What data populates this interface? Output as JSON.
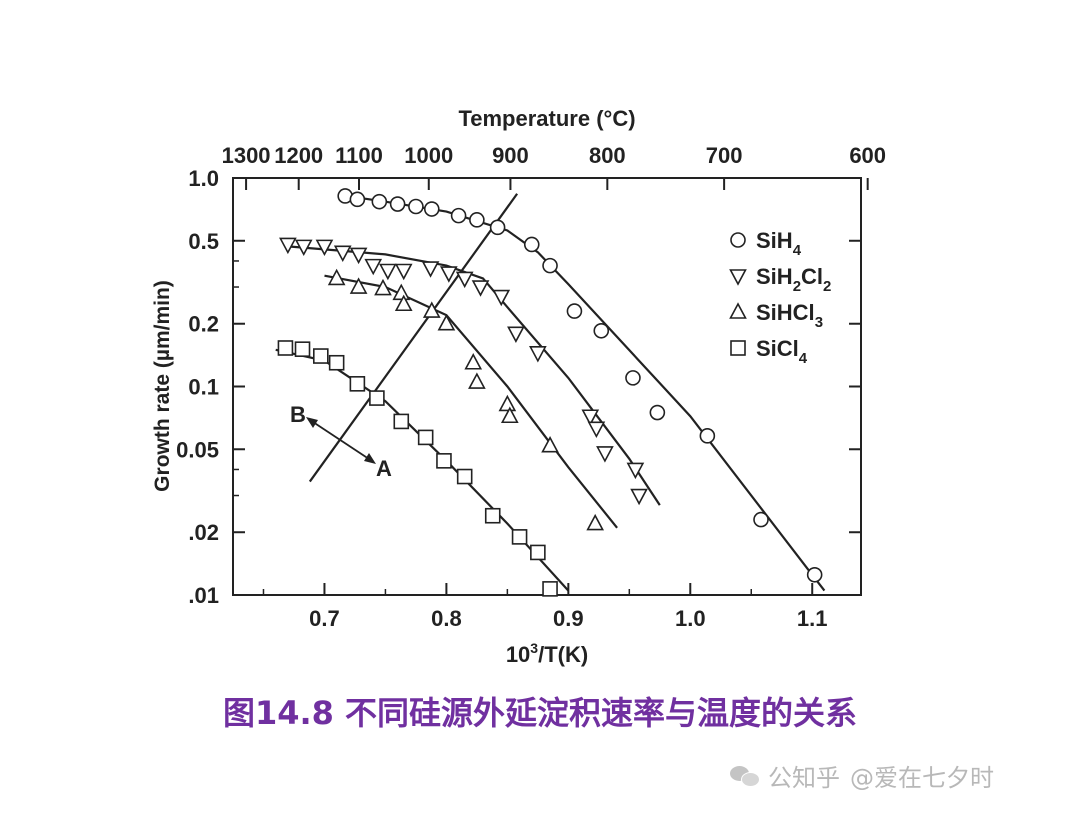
{
  "chart_data": {
    "type": "scatter",
    "x_scale": "linear",
    "y_scale": "log",
    "xlabel_main": "10",
    "xlabel_sup": "3",
    "xlabel_rest": "/T(K)",
    "ylabel": "Growth rate (µm/min)",
    "top_axis_label": "Temperature (°C)",
    "xlim": [
      0.625,
      1.14
    ],
    "ylim": [
      0.01,
      1.0
    ],
    "x_ticks": [
      0.7,
      0.8,
      0.9,
      1.0,
      1.1
    ],
    "x_tick_labels": [
      "0.7",
      "0.8",
      "0.9",
      "1.0",
      "1.1"
    ],
    "y_ticks": [
      1.0,
      0.5,
      0.2,
      0.1,
      0.05,
      0.02,
      0.01
    ],
    "y_tick_labels": [
      "1.0",
      "0.5",
      "0.2",
      "0.1",
      "0.05",
      ".02",
      ".01"
    ],
    "top_ticks_celsius": [
      1300,
      1200,
      1100,
      1000,
      900,
      800,
      700,
      600
    ],
    "top_tick_labels": [
      "1300",
      "1200",
      "1100",
      "1000",
      "900",
      "800",
      "700",
      "600"
    ],
    "legend_position": "top-right",
    "series": [
      {
        "name_base": "SiH",
        "name_sub": "4",
        "name_rest": "",
        "name_sub2": "",
        "marker": "circle",
        "points": [
          [
            0.717,
            0.82
          ],
          [
            0.727,
            0.79
          ],
          [
            0.745,
            0.77
          ],
          [
            0.76,
            0.75
          ],
          [
            0.775,
            0.73
          ],
          [
            0.788,
            0.71
          ],
          [
            0.81,
            0.66
          ],
          [
            0.825,
            0.63
          ],
          [
            0.842,
            0.58
          ],
          [
            0.87,
            0.48
          ],
          [
            0.885,
            0.38
          ],
          [
            0.905,
            0.23
          ],
          [
            0.927,
            0.185
          ],
          [
            0.953,
            0.11
          ],
          [
            0.973,
            0.075
          ],
          [
            1.014,
            0.058
          ],
          [
            1.058,
            0.023
          ],
          [
            1.102,
            0.0125
          ]
        ],
        "fit": [
          [
            0.712,
            0.83
          ],
          [
            0.75,
            0.77
          ],
          [
            0.8,
            0.69
          ],
          [
            0.85,
            0.56
          ],
          [
            0.875,
            0.44
          ],
          [
            0.9,
            0.31
          ],
          [
            1.0,
            0.072
          ],
          [
            1.1,
            0.0125
          ],
          [
            1.11,
            0.0105
          ]
        ]
      },
      {
        "name_base": "SiH",
        "name_sub": "2",
        "name_rest": "Cl",
        "name_sub2": "2",
        "marker": "triangle-down",
        "points": [
          [
            0.67,
            0.48
          ],
          [
            0.683,
            0.47
          ],
          [
            0.7,
            0.47
          ],
          [
            0.715,
            0.44
          ],
          [
            0.728,
            0.43
          ],
          [
            0.74,
            0.38
          ],
          [
            0.752,
            0.36
          ],
          [
            0.765,
            0.36
          ],
          [
            0.787,
            0.37
          ],
          [
            0.802,
            0.35
          ],
          [
            0.815,
            0.33
          ],
          [
            0.828,
            0.3
          ],
          [
            0.845,
            0.27
          ],
          [
            0.857,
            0.18
          ],
          [
            0.875,
            0.145
          ],
          [
            0.918,
            0.072
          ],
          [
            0.923,
            0.063
          ],
          [
            0.93,
            0.048
          ],
          [
            0.955,
            0.04
          ],
          [
            0.958,
            0.03
          ]
        ],
        "fit": [
          [
            0.67,
            0.47
          ],
          [
            0.75,
            0.43
          ],
          [
            0.8,
            0.38
          ],
          [
            0.83,
            0.33
          ],
          [
            0.85,
            0.24
          ],
          [
            0.9,
            0.11
          ],
          [
            0.95,
            0.045
          ],
          [
            0.975,
            0.027
          ]
        ]
      },
      {
        "name_base": "SiHCl",
        "name_sub": "3",
        "name_rest": "",
        "name_sub2": "",
        "marker": "triangle-up",
        "points": [
          [
            0.71,
            0.33
          ],
          [
            0.728,
            0.3
          ],
          [
            0.748,
            0.295
          ],
          [
            0.763,
            0.28
          ],
          [
            0.765,
            0.248
          ],
          [
            0.788,
            0.23
          ],
          [
            0.8,
            0.2
          ],
          [
            0.822,
            0.13
          ],
          [
            0.825,
            0.105
          ],
          [
            0.85,
            0.082
          ],
          [
            0.852,
            0.072
          ],
          [
            0.885,
            0.052
          ],
          [
            0.922,
            0.022
          ]
        ],
        "fit": [
          [
            0.7,
            0.34
          ],
          [
            0.75,
            0.3
          ],
          [
            0.8,
            0.22
          ],
          [
            0.85,
            0.1
          ],
          [
            0.9,
            0.041
          ],
          [
            0.94,
            0.021
          ]
        ]
      },
      {
        "name_base": "SiCl",
        "name_sub": "4",
        "name_rest": "",
        "name_sub2": "",
        "marker": "square",
        "points": [
          [
            0.668,
            0.153
          ],
          [
            0.682,
            0.151
          ],
          [
            0.697,
            0.14
          ],
          [
            0.71,
            0.13
          ],
          [
            0.727,
            0.103
          ],
          [
            0.743,
            0.088
          ],
          [
            0.763,
            0.068
          ],
          [
            0.783,
            0.057
          ],
          [
            0.798,
            0.044
          ],
          [
            0.815,
            0.037
          ],
          [
            0.838,
            0.024
          ],
          [
            0.86,
            0.019
          ],
          [
            0.875,
            0.016
          ],
          [
            0.885,
            0.0107
          ]
        ],
        "fit": [
          [
            0.66,
            0.15
          ],
          [
            0.7,
            0.133
          ],
          [
            0.75,
            0.085
          ],
          [
            0.8,
            0.044
          ],
          [
            0.85,
            0.022
          ],
          [
            0.9,
            0.0105
          ]
        ]
      }
    ],
    "transition_line": [
      [
        0.688,
        0.035
      ],
      [
        0.858,
        0.84
      ]
    ],
    "arrow_label_B": "B",
    "arrow_label_A": "A"
  },
  "caption": "图14.8 不同硅源外延淀积速率与温度的关系",
  "watermark": {
    "prefix": "公知乎",
    "account": "@爱在七夕时"
  }
}
